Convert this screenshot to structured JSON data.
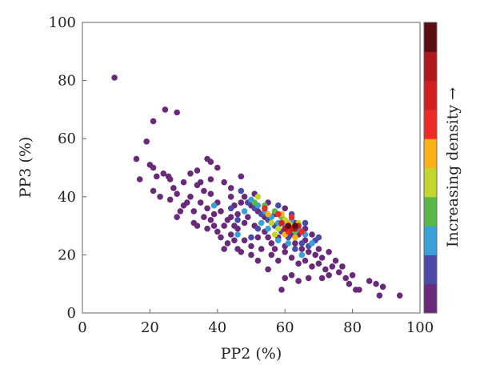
{
  "chart_data": {
    "type": "scatter",
    "title": "",
    "xlabel": "PP2 (%)",
    "ylabel": "PP3 (%)",
    "xlim": [
      0,
      100
    ],
    "ylim": [
      0,
      100
    ],
    "xticks": [
      "0",
      "20",
      "40",
      "60",
      "80",
      "100"
    ],
    "yticks": [
      "0",
      "20",
      "40",
      "60",
      "80",
      "100"
    ],
    "grid": false,
    "colorbar": {
      "label": "Increasing density →",
      "colors": [
        "#6a2a7a",
        "#4a4ba6",
        "#3aa0d8",
        "#5ab84a",
        "#c2d62e",
        "#f9b11a",
        "#ee2c25",
        "#d11f22",
        "#b0181c",
        "#5a0e10"
      ]
    },
    "points": [
      [
        9.5,
        81,
        0
      ],
      [
        24.5,
        70,
        0
      ],
      [
        28,
        69,
        0
      ],
      [
        21,
        66,
        0
      ],
      [
        19,
        59,
        0
      ],
      [
        16,
        53,
        0
      ],
      [
        37,
        53,
        0
      ],
      [
        38,
        52,
        0
      ],
      [
        20,
        51,
        0
      ],
      [
        21,
        50,
        0
      ],
      [
        40,
        50,
        0
      ],
      [
        34,
        49,
        0
      ],
      [
        24,
        48,
        0
      ],
      [
        32,
        48,
        0
      ],
      [
        25.5,
        47,
        0
      ],
      [
        22,
        47,
        0
      ],
      [
        26,
        46,
        0
      ],
      [
        38,
        46,
        0
      ],
      [
        17,
        46,
        0
      ],
      [
        30,
        45,
        0
      ],
      [
        35,
        45,
        0
      ],
      [
        42,
        45,
        0
      ],
      [
        47,
        47,
        0
      ],
      [
        27,
        43,
        0
      ],
      [
        34,
        44,
        0
      ],
      [
        44,
        43,
        0
      ],
      [
        21,
        42,
        0
      ],
      [
        36,
        42,
        0
      ],
      [
        28,
        41,
        0
      ],
      [
        38,
        41,
        0
      ],
      [
        23,
        40,
        0
      ],
      [
        32,
        40,
        0
      ],
      [
        44,
        40,
        0
      ],
      [
        35,
        38,
        0
      ],
      [
        40,
        38,
        0
      ],
      [
        47,
        38,
        0
      ],
      [
        30,
        37,
        0
      ],
      [
        45,
        37,
        0
      ],
      [
        37,
        36,
        0
      ],
      [
        50,
        37,
        0
      ],
      [
        33,
        35,
        0
      ],
      [
        41,
        35,
        0
      ],
      [
        46,
        34,
        0
      ],
      [
        28,
        33,
        0
      ],
      [
        36,
        33,
        0
      ],
      [
        44,
        33,
        0
      ],
      [
        38,
        32,
        0
      ],
      [
        48,
        31,
        0
      ],
      [
        34,
        30,
        0
      ],
      [
        42,
        30,
        0
      ],
      [
        40,
        28,
        0
      ],
      [
        46,
        29,
        0
      ],
      [
        44,
        27,
        0
      ],
      [
        52,
        26,
        0
      ],
      [
        48,
        25,
        0
      ],
      [
        50,
        23,
        0
      ],
      [
        53,
        22,
        0
      ],
      [
        56,
        20,
        0
      ],
      [
        60,
        21,
        0
      ],
      [
        62,
        19,
        0
      ],
      [
        58,
        18,
        0
      ],
      [
        64,
        17,
        0
      ],
      [
        66,
        18,
        0
      ],
      [
        68,
        16,
        0
      ],
      [
        70,
        17,
        0
      ],
      [
        72,
        15,
        0
      ],
      [
        74,
        16,
        0
      ],
      [
        73,
        13,
        0
      ],
      [
        76,
        14,
        0
      ],
      [
        78,
        12,
        0
      ],
      [
        80,
        13,
        0
      ],
      [
        79,
        10,
        0
      ],
      [
        81,
        8,
        0
      ],
      [
        85,
        11,
        0
      ],
      [
        87,
        10,
        0
      ],
      [
        89,
        9,
        0
      ],
      [
        88,
        6,
        0
      ],
      [
        94,
        6,
        0
      ],
      [
        82,
        8,
        0
      ],
      [
        71,
        12,
        0
      ],
      [
        67,
        12,
        0
      ],
      [
        62,
        13,
        0
      ],
      [
        60,
        12,
        0
      ],
      [
        64,
        11,
        0
      ],
      [
        59,
        8,
        0
      ],
      [
        55,
        15,
        0
      ],
      [
        52,
        18,
        0
      ],
      [
        50,
        20,
        0
      ],
      [
        46,
        22,
        0
      ],
      [
        43,
        24,
        0
      ],
      [
        47,
        21,
        0
      ],
      [
        41,
        26,
        0
      ],
      [
        39,
        30,
        0
      ],
      [
        56,
        24,
        0
      ],
      [
        58,
        26,
        0
      ],
      [
        60,
        23,
        0
      ],
      [
        63,
        24,
        0
      ],
      [
        65,
        22,
        0
      ],
      [
        67,
        21,
        0
      ],
      [
        69,
        20,
        0
      ],
      [
        71,
        19,
        0
      ],
      [
        73,
        21,
        0
      ],
      [
        75,
        18,
        0
      ],
      [
        77,
        16,
        0
      ],
      [
        70,
        22,
        0
      ],
      [
        66,
        25,
        0
      ],
      [
        62,
        27,
        0
      ],
      [
        58,
        30,
        0
      ],
      [
        54,
        28,
        0
      ],
      [
        51,
        30,
        0
      ],
      [
        49,
        33,
        0
      ],
      [
        52,
        35,
        0
      ],
      [
        55,
        38,
        0
      ],
      [
        48,
        40,
        0
      ],
      [
        51,
        41,
        0
      ],
      [
        54,
        33,
        0
      ],
      [
        57,
        34,
        0
      ],
      [
        60,
        36,
        0
      ],
      [
        63,
        31,
        0
      ],
      [
        66,
        29,
        0
      ],
      [
        68,
        27,
        0
      ],
      [
        45,
        30,
        0
      ],
      [
        43,
        32,
        0
      ],
      [
        39,
        34,
        0
      ],
      [
        31,
        38,
        0
      ],
      [
        29,
        35,
        0
      ],
      [
        26,
        39,
        0
      ],
      [
        33,
        31,
        0
      ],
      [
        37,
        29,
        0
      ],
      [
        42,
        22,
        0
      ],
      [
        45,
        25,
        0
      ],
      [
        55,
        26,
        0
      ],
      [
        57,
        22,
        0
      ],
      [
        61,
        29,
        0
      ],
      [
        64,
        27,
        0
      ],
      [
        44,
        36,
        1
      ],
      [
        47,
        42,
        1
      ],
      [
        49,
        38,
        1
      ],
      [
        51,
        36,
        1
      ],
      [
        53,
        34,
        1
      ],
      [
        55,
        32,
        1
      ],
      [
        57,
        30,
        1
      ],
      [
        59,
        28,
        1
      ],
      [
        61,
        26,
        1
      ],
      [
        63,
        22,
        1
      ],
      [
        65,
        24,
        1
      ],
      [
        67,
        23,
        1
      ],
      [
        69,
        25,
        1
      ],
      [
        52,
        29,
        1
      ],
      [
        50,
        26,
        1
      ],
      [
        46,
        32,
        1
      ],
      [
        58,
        37,
        1
      ],
      [
        62,
        34,
        1
      ],
      [
        66,
        31,
        1
      ],
      [
        70,
        26,
        1
      ],
      [
        48,
        35,
        2
      ],
      [
        50,
        39,
        2
      ],
      [
        52,
        37,
        2
      ],
      [
        54,
        35,
        2
      ],
      [
        56,
        33,
        2
      ],
      [
        58,
        31,
        2
      ],
      [
        60,
        30,
        2
      ],
      [
        62,
        32,
        2
      ],
      [
        64,
        29,
        2
      ],
      [
        66,
        27,
        2
      ],
      [
        68,
        24,
        2
      ],
      [
        58,
        25,
        2
      ],
      [
        55,
        29,
        2
      ],
      [
        53,
        31,
        2
      ],
      [
        61,
        24,
        2
      ],
      [
        46,
        27,
        2
      ],
      [
        39,
        37,
        2
      ],
      [
        65,
        20,
        2
      ],
      [
        51,
        38,
        3
      ],
      [
        54,
        37,
        3
      ],
      [
        57,
        35,
        3
      ],
      [
        59,
        33,
        3
      ],
      [
        63,
        28,
        3
      ],
      [
        60,
        32,
        4
      ],
      [
        56,
        31,
        4
      ],
      [
        58,
        29,
        4
      ],
      [
        62,
        30,
        4
      ],
      [
        64,
        31,
        4
      ],
      [
        52,
        40,
        4
      ],
      [
        57,
        27,
        4
      ],
      [
        59,
        34,
        5
      ],
      [
        61,
        31,
        5
      ],
      [
        55,
        34,
        5
      ],
      [
        63,
        26,
        5
      ],
      [
        60,
        27,
        5
      ],
      [
        54,
        36,
        6
      ],
      [
        58,
        34,
        6
      ],
      [
        61,
        28,
        6
      ],
      [
        62,
        33,
        6
      ],
      [
        65,
        28,
        6
      ],
      [
        59,
        31,
        7
      ],
      [
        62,
        29,
        7
      ],
      [
        64,
        30,
        7
      ],
      [
        60,
        29,
        8
      ],
      [
        63,
        29,
        8
      ],
      [
        61,
        30,
        9
      ],
      [
        63,
        30,
        9
      ]
    ]
  }
}
